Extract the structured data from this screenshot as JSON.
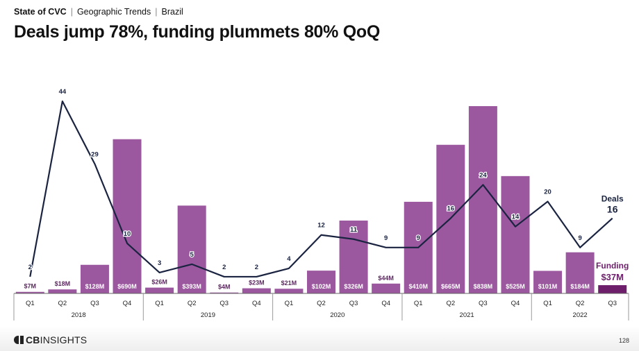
{
  "breadcrumb": {
    "section": "State of CVC",
    "topic": "Geographic Trends",
    "region": "Brazil"
  },
  "page_title": "Deals jump 78%, funding plummets 80% QoQ",
  "colors": {
    "bar": "#9b589f",
    "bar_highlight": "#6e1f6b",
    "line": "#1a2340",
    "funding_label": "#5a2a5e"
  },
  "chart_data": {
    "type": "bar+line",
    "categories": [
      "Q1",
      "Q2",
      "Q3",
      "Q4",
      "Q1",
      "Q2",
      "Q3",
      "Q4",
      "Q1",
      "Q2",
      "Q3",
      "Q4",
      "Q1",
      "Q2",
      "Q3",
      "Q4",
      "Q1",
      "Q2",
      "Q3"
    ],
    "years": [
      {
        "label": "2018",
        "count": 4
      },
      {
        "label": "2019",
        "count": 4
      },
      {
        "label": "2020",
        "count": 4
      },
      {
        "label": "2021",
        "count": 4
      },
      {
        "label": "2022",
        "count": 3
      }
    ],
    "series": [
      {
        "name": "Funding",
        "type": "bar",
        "values": [
          7,
          18,
          128,
          690,
          26,
          393,
          4,
          23,
          21,
          102,
          326,
          44,
          410,
          665,
          838,
          525,
          101,
          184,
          37
        ],
        "labels": [
          "$7M",
          "$18M",
          "$128M",
          "$690M",
          "$26M",
          "$393M",
          "$4M",
          "$23M",
          "$21M",
          "$102M",
          "$326M",
          "$44M",
          "$410M",
          "$665M",
          "$838M",
          "$525M",
          "$101M",
          "$184M",
          "$37M"
        ]
      },
      {
        "name": "Deals",
        "type": "line",
        "values": [
          2,
          44,
          29,
          10,
          3,
          5,
          2,
          2,
          4,
          12,
          11,
          9,
          9,
          16,
          24,
          14,
          20,
          9,
          16
        ]
      }
    ],
    "callouts": {
      "deals_label": "Deals",
      "deals_value": "16",
      "funding_label": "Funding",
      "funding_value": "$37M"
    },
    "funding_range": [
      0,
      900
    ],
    "deals_range": [
      0,
      48
    ]
  },
  "footer": {
    "logo_bold": "CB",
    "logo_rest": "INSIGHTS",
    "page_number": "128"
  }
}
